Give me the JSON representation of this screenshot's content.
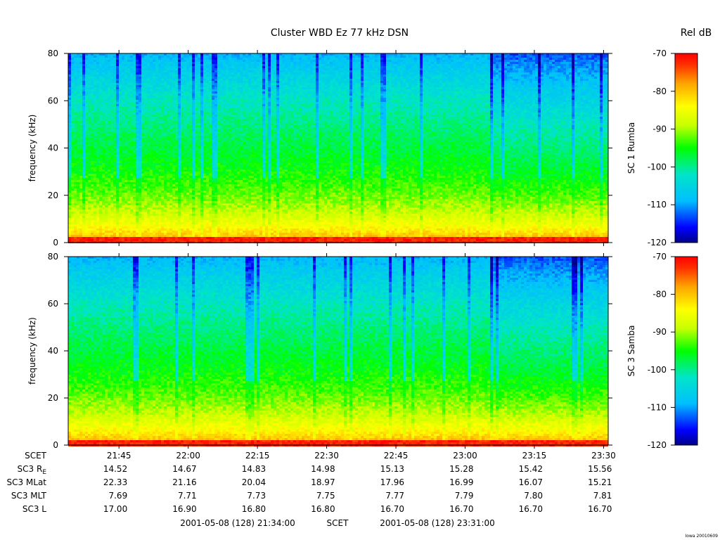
{
  "chart_data": {
    "type": "heatmap",
    "title": "Cluster WBD Ez 77 kHz DSN",
    "colorbar_title": "Rel dB",
    "colorbar": {
      "range": [
        -120,
        -70
      ],
      "ticks": [
        -70,
        -80,
        -90,
        -100,
        -110,
        -120
      ],
      "colors": [
        "#00008b",
        "#0000ff",
        "#00bfff",
        "#00e5c8",
        "#00ff00",
        "#c8ff00",
        "#ffff00",
        "#ffa500",
        "#ff3000",
        "#ff0000"
      ]
    },
    "x": {
      "label": "SCET",
      "range_min": [
        1294,
        1411
      ],
      "ticks": [
        {
          "min": 1305,
          "label": "21:45"
        },
        {
          "min": 1320,
          "label": "22:00"
        },
        {
          "min": 1335,
          "label": "22:15"
        },
        {
          "min": 1350,
          "label": "22:30"
        },
        {
          "min": 1365,
          "label": "22:45"
        },
        {
          "min": 1380,
          "label": "23:00"
        },
        {
          "min": 1395,
          "label": "23:15"
        },
        {
          "min": 1410,
          "label": "23:30"
        }
      ]
    },
    "panels": [
      {
        "ylabel": "frequency (kHz)",
        "ylim": [
          0,
          80
        ],
        "yticks": [
          0,
          20,
          40,
          60,
          80
        ],
        "side_label": "SC 1 Rumba"
      },
      {
        "ylabel": "frequency (kHz)",
        "ylim": [
          0,
          80
        ],
        "yticks": [
          0,
          20,
          40,
          60,
          80
        ],
        "side_label": "SC 3 Samba"
      }
    ],
    "ephemeris": {
      "rows": [
        {
          "label": "SCET",
          "values": [
            "21:45",
            "22:00",
            "22:15",
            "22:30",
            "22:45",
            "23:00",
            "23:15",
            "23:30"
          ]
        },
        {
          "label": "SC3 R",
          "label_sub": "E",
          "values": [
            "14.52",
            "14.67",
            "14.83",
            "14.98",
            "15.13",
            "15.28",
            "15.42",
            "15.56"
          ]
        },
        {
          "label": "SC3 MLat",
          "values": [
            "22.33",
            "21.16",
            "20.04",
            "18.97",
            "17.96",
            "16.99",
            "16.07",
            "15.21"
          ]
        },
        {
          "label": "SC3 MLT",
          "values": [
            "7.69",
            "7.71",
            "7.73",
            "7.75",
            "7.77",
            "7.79",
            "7.80",
            "7.81"
          ]
        },
        {
          "label": "SC3 L",
          "values": [
            "17.00",
            "16.90",
            "16.80",
            "16.80",
            "16.70",
            "16.70",
            "16.70",
            "16.70"
          ]
        }
      ]
    },
    "footer": {
      "start": "2001-05-08 (128) 21:34:00",
      "mid": "SCET",
      "end": "2001-05-08 (128) 23:31:00",
      "credit": "Iowa 20010609"
    }
  }
}
